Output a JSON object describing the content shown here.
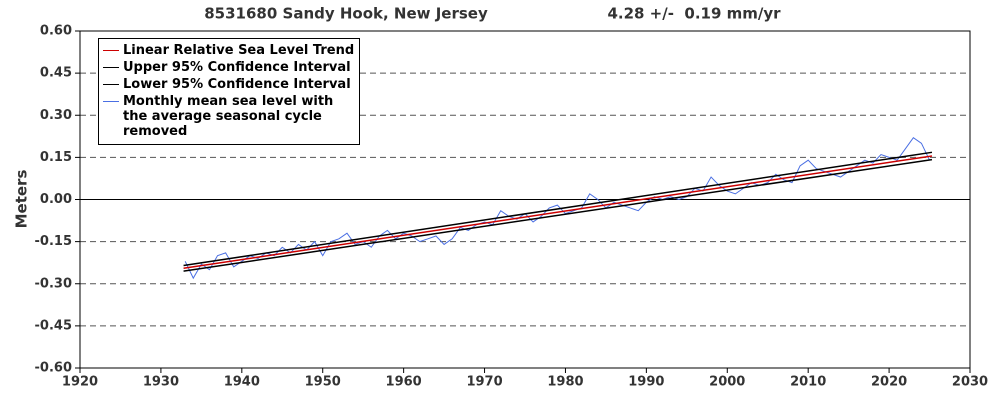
{
  "chart_data": {
    "type": "line",
    "title": "8531680 Sandy Hook, New Jersey",
    "subtitle": "4.28 +/-  0.19 mm/yr",
    "ylabel": "Meters",
    "xlim": [
      1920,
      2030
    ],
    "xticks": [
      1920,
      1930,
      1940,
      1950,
      1960,
      1970,
      1980,
      1990,
      2000,
      2010,
      2020,
      2030
    ],
    "ylim": [
      -0.6,
      0.6
    ],
    "yticks": [
      {
        "value": 0.6,
        "label": "0.60"
      },
      0.45,
      {
        "value": 0.3,
        "label": "0.30"
      },
      0.15,
      {
        "value": 0,
        "label": "0.00"
      },
      -0.15,
      {
        "value": -0.3,
        "label": "-0.30"
      },
      -0.45,
      {
        "value": -0.6,
        "label": "-0.60"
      }
    ],
    "grid": true,
    "legend": "upper left",
    "series": [
      {
        "name": "Linear Relative Sea Level Trend",
        "color": "#cc0000",
        "x": [
          1932.8,
          2025.3
        ],
        "values": [
          -0.245,
          0.155
        ]
      },
      {
        "name": "Upper 95% Confidence Interval",
        "color": "#000000",
        "x": [
          1932.8,
          2025.3
        ],
        "values": [
          -0.235,
          0.168
        ]
      },
      {
        "name": "Lower 95% Confidence Interval",
        "color": "#000000",
        "x": [
          1932.8,
          2025.3
        ],
        "values": [
          -0.255,
          0.142
        ]
      },
      {
        "name": "Monthly mean sea level with the average seasonal cycle removed",
        "color": "#4a6fe3",
        "x": [
          1933,
          1934,
          1935,
          1936,
          1937,
          1938,
          1939,
          1940,
          1941,
          1942,
          1943,
          1944,
          1945,
          1946,
          1947,
          1948,
          1949,
          1950,
          1951,
          1952,
          1953,
          1954,
          1955,
          1956,
          1957,
          1958,
          1959,
          1960,
          1961,
          1962,
          1963,
          1964,
          1965,
          1966,
          1967,
          1968,
          1969,
          1970,
          1971,
          1972,
          1973,
          1974,
          1975,
          1976,
          1977,
          1978,
          1979,
          1980,
          1981,
          1982,
          1983,
          1984,
          1985,
          1986,
          1987,
          1988,
          1989,
          1990,
          1991,
          1992,
          1993,
          1994,
          1995,
          1996,
          1997,
          1998,
          1999,
          2000,
          2001,
          2002,
          2003,
          2004,
          2005,
          2006,
          2007,
          2008,
          2009,
          2010,
          2011,
          2012,
          2013,
          2014,
          2015,
          2016,
          2017,
          2018,
          2019,
          2020,
          2021,
          2022,
          2023,
          2024,
          2025
        ],
        "values": [
          -0.22,
          -0.28,
          -0.23,
          -0.25,
          -0.2,
          -0.19,
          -0.24,
          -0.22,
          -0.2,
          -0.21,
          -0.19,
          -0.2,
          -0.17,
          -0.19,
          -0.16,
          -0.18,
          -0.15,
          -0.2,
          -0.15,
          -0.14,
          -0.12,
          -0.16,
          -0.15,
          -0.17,
          -0.13,
          -0.11,
          -0.14,
          -0.12,
          -0.13,
          -0.15,
          -0.14,
          -0.13,
          -0.16,
          -0.14,
          -0.1,
          -0.11,
          -0.09,
          -0.08,
          -0.09,
          -0.04,
          -0.06,
          -0.07,
          -0.05,
          -0.08,
          -0.06,
          -0.03,
          -0.02,
          -0.05,
          -0.04,
          -0.03,
          0.02,
          0.0,
          -0.03,
          -0.01,
          -0.02,
          -0.03,
          -0.04,
          -0.01,
          0.01,
          0.0,
          0.01,
          0.0,
          0.01,
          0.04,
          0.03,
          0.08,
          0.05,
          0.03,
          0.02,
          0.04,
          0.06,
          0.05,
          0.06,
          0.09,
          0.07,
          0.06,
          0.12,
          0.14,
          0.11,
          0.1,
          0.09,
          0.08,
          0.1,
          0.12,
          0.14,
          0.13,
          0.16,
          0.15,
          0.14,
          0.18,
          0.22,
          0.2,
          0.14
        ]
      }
    ]
  }
}
